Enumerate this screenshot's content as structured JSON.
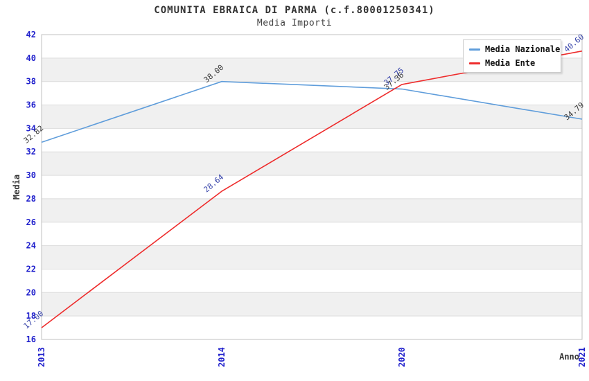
{
  "title": "COMUNITA EBRAICA DI PARMA (c.f.80001250341)",
  "subtitle": "Media Importi",
  "chart_data": {
    "type": "line",
    "title": "COMUNITA EBRAICA DI PARMA (c.f.80001250341)",
    "subtitle": "Media Importi",
    "categories": [
      "2013",
      "2014",
      "2020",
      "2021"
    ],
    "series": [
      {
        "name": "Media Nazionale",
        "color": "#5F9DDB",
        "label_color": "#3A3A3A",
        "values": [
          32.82,
          38.0,
          37.36,
          34.79
        ]
      },
      {
        "name": "Media Ente",
        "color": "#EE2C2C",
        "label_color": "#3340A8",
        "values": [
          17.0,
          28.64,
          37.75,
          40.6
        ]
      }
    ],
    "xlabel": "Anno",
    "ylabel": "Media",
    "ylim": [
      16,
      42
    ],
    "ytick_step": 2,
    "grid": "horizontal-bands",
    "band_colors": [
      "#FFFFFF",
      "#F0F0F0"
    ],
    "gridline_color": "#DCDCDC",
    "frame_color": "#C0C0C0",
    "tick_label_color": "#1F1FCC",
    "axis_title_color": "#333333",
    "value_label_format": "2-decimals",
    "legend_position": "top-right"
  }
}
